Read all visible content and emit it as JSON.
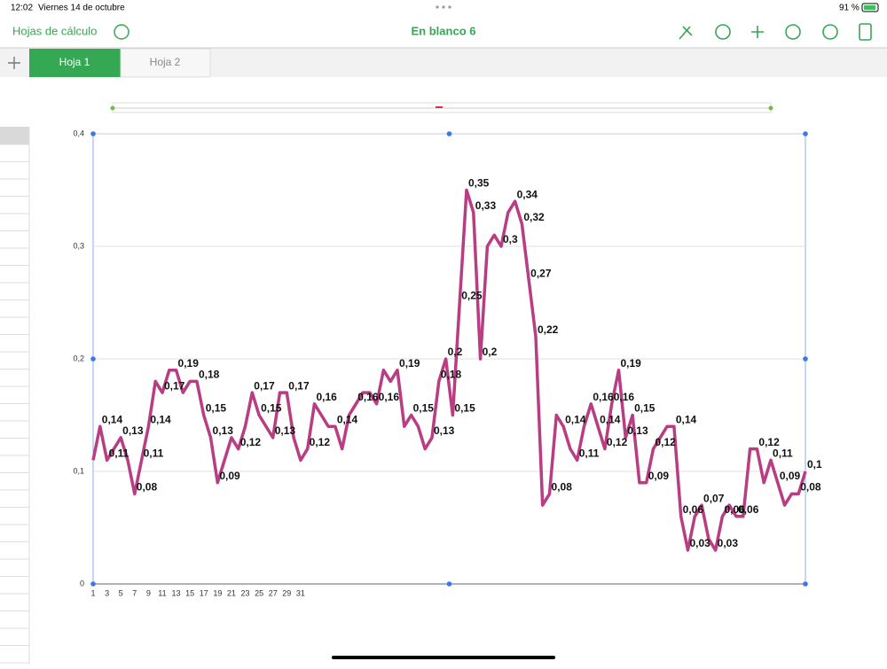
{
  "status": {
    "time": "12:02",
    "date": "Viernes 14 de octubre",
    "battery": "91 %"
  },
  "toolbar": {
    "back": "Hojas de cálculo",
    "title": "En blanco 6"
  },
  "tabs": [
    "Hoja 1",
    "Hoja 2"
  ],
  "chart_data": {
    "type": "line",
    "categories": [
      "1",
      null,
      "3",
      null,
      "5",
      null,
      "7",
      null,
      "9",
      null,
      "11",
      null,
      "13",
      null,
      "15",
      null,
      "17",
      null,
      "19",
      null,
      "21",
      null,
      "23",
      null,
      "25",
      null,
      "27",
      null,
      "29",
      null,
      "31",
      null,
      null,
      null,
      null,
      null,
      null,
      null,
      null,
      null,
      null,
      null,
      null,
      null,
      null,
      null,
      null,
      null,
      null,
      null,
      null,
      null,
      null,
      null,
      null,
      null,
      null,
      null,
      null,
      null,
      null,
      null,
      null,
      null,
      null,
      null,
      null,
      null,
      null,
      null,
      null,
      null,
      null,
      null,
      null,
      null,
      null,
      null,
      null,
      null,
      null,
      null,
      null,
      null,
      null,
      null,
      null,
      null,
      null,
      null,
      null,
      null,
      null,
      null,
      null,
      null,
      null,
      null,
      null,
      null,
      null,
      null,
      null,
      null
    ],
    "series": [
      {
        "color": "#b83d82",
        "values": [
          0.11,
          0.14,
          0.11,
          0.12,
          0.13,
          0.11,
          0.08,
          0.11,
          0.14,
          0.18,
          0.17,
          0.19,
          0.19,
          0.17,
          0.18,
          0.18,
          0.15,
          0.13,
          0.09,
          0.11,
          0.13,
          0.12,
          0.14,
          0.17,
          0.15,
          0.14,
          0.13,
          0.17,
          0.17,
          0.13,
          0.11,
          0.12,
          0.16,
          0.15,
          0.14,
          0.14,
          0.12,
          0.15,
          0.16,
          0.17,
          0.17,
          0.16,
          0.19,
          0.18,
          0.19,
          0.14,
          0.15,
          0.14,
          0.12,
          0.13,
          0.18,
          0.2,
          0.15,
          0.25,
          0.35,
          0.33,
          0.2,
          0.3,
          0.31,
          0.3,
          0.33,
          0.34,
          0.32,
          0.27,
          0.22,
          0.07,
          0.08,
          0.15,
          0.14,
          0.12,
          0.11,
          0.14,
          0.16,
          0.14,
          0.12,
          0.16,
          0.19,
          0.13,
          0.15,
          0.09,
          0.09,
          0.12,
          0.13,
          0.14,
          0.14,
          0.06,
          0.03,
          0.06,
          0.07,
          0.04,
          0.03,
          0.06,
          0.07,
          0.06,
          0.06,
          0.12,
          0.12,
          0.09,
          0.11,
          0.09,
          0.07,
          0.08,
          0.08,
          0.1
        ],
        "value_labels": [
          null,
          "0,14",
          "0,11",
          null,
          "0,13",
          null,
          "0,08",
          "0,11",
          "0,14",
          null,
          "0,17",
          null,
          "0,19",
          null,
          null,
          "0,18",
          "0,15",
          "0,13",
          "0,09",
          null,
          null,
          "0,12",
          null,
          "0,17",
          "0,15",
          null,
          "0,13",
          null,
          "0,17",
          null,
          null,
          "0,12",
          "0,16",
          null,
          null,
          "0,14",
          null,
          null,
          "0,16",
          null,
          null,
          "0,16",
          null,
          null,
          "0,19",
          null,
          "0,15",
          null,
          null,
          "0,13",
          "0,18",
          "0,2",
          "0,15",
          "0,25",
          "0,35",
          "0,33",
          "0,2",
          null,
          null,
          "0,3",
          null,
          "0,34",
          "0,32",
          "0,27",
          "0,22",
          null,
          "0,08",
          null,
          "0,14",
          null,
          "0,11",
          null,
          "0,16",
          "0,14",
          "0,12",
          "0,16",
          "0,19",
          "0,13",
          "0,15",
          null,
          "0,09",
          "0,12",
          null,
          null,
          "0,14",
          "0,06",
          "0,03",
          null,
          "0,07",
          null,
          "0,03",
          "0,06",
          null,
          "0,06",
          null,
          null,
          "0,12",
          null,
          "0,11",
          "0,09",
          null,
          null,
          "0,08",
          "0,1"
        ]
      }
    ],
    "ylim": [
      0,
      0.4
    ],
    "yticks": [
      0,
      {
        "value": 0.1,
        "label": "0,1"
      },
      {
        "value": 0.2,
        "label": "0,2"
      },
      {
        "value": 0.3,
        "label": "0,3"
      },
      {
        "value": 0.4,
        "label": "0,4"
      }
    ],
    "grid": true
  }
}
